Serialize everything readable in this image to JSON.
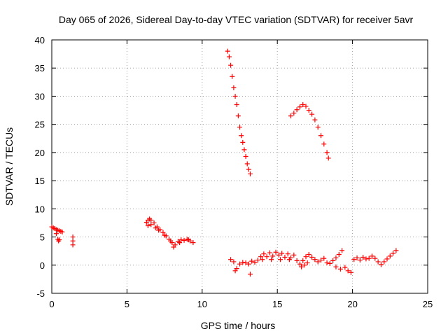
{
  "chart_data": {
    "type": "scatter",
    "title": "Day 065 of 2026, Sidereal Day-to-day VTEC variation (SDTVAR) for receiver 5avr",
    "xlabel": "GPS time / hours",
    "ylabel": "SDTVAR / TECUs",
    "xlim": [
      0,
      25
    ],
    "ylim": [
      -5,
      40
    ],
    "xticks": [
      "0",
      "5",
      "10",
      "15",
      "20",
      "25"
    ],
    "yticks": [
      "-5",
      "0",
      "5",
      "10",
      "15",
      "20",
      "25",
      "30",
      "35",
      "40"
    ],
    "grid": true,
    "marker": "+",
    "color": "#ff0000",
    "series": [
      {
        "name": "segment-1",
        "points": [
          [
            0.0,
            6.8
          ],
          [
            0.1,
            6.6
          ],
          [
            0.2,
            6.5
          ],
          [
            0.3,
            6.3
          ],
          [
            0.4,
            6.2
          ],
          [
            0.5,
            6.1
          ],
          [
            0.6,
            6.0
          ],
          [
            0.7,
            5.9
          ],
          [
            0.3,
            5.6
          ],
          [
            0.4,
            4.6
          ],
          [
            0.45,
            4.3
          ],
          [
            0.5,
            4.5
          ]
        ]
      },
      {
        "name": "segment-2",
        "points": [
          [
            1.4,
            5.0
          ],
          [
            1.4,
            4.3
          ],
          [
            1.4,
            3.6
          ]
        ]
      },
      {
        "name": "segment-3",
        "points": [
          [
            6.3,
            7.6
          ],
          [
            6.4,
            8.0
          ],
          [
            6.5,
            8.2
          ],
          [
            6.6,
            8.0
          ],
          [
            6.8,
            7.5
          ],
          [
            7.0,
            6.8
          ],
          [
            7.2,
            6.3
          ],
          [
            7.4,
            5.8
          ],
          [
            7.6,
            5.2
          ],
          [
            7.8,
            4.6
          ],
          [
            8.0,
            4.0
          ],
          [
            8.1,
            3.2
          ],
          [
            8.2,
            3.6
          ],
          [
            8.4,
            4.2
          ],
          [
            8.6,
            4.5
          ],
          [
            8.8,
            4.4
          ],
          [
            9.0,
            4.6
          ],
          [
            9.2,
            4.3
          ],
          [
            9.4,
            4.0
          ],
          [
            6.4,
            7.0
          ],
          [
            6.6,
            7.2
          ],
          [
            6.9,
            6.6
          ],
          [
            7.1,
            6.2
          ],
          [
            7.5,
            5.3
          ],
          [
            7.9,
            4.3
          ],
          [
            8.5,
            4.0
          ],
          [
            9.1,
            4.5
          ]
        ]
      },
      {
        "name": "segment-4",
        "points": [
          [
            11.7,
            38.0
          ],
          [
            11.8,
            37.0
          ],
          [
            11.9,
            35.5
          ],
          [
            12.0,
            33.5
          ],
          [
            12.1,
            31.5
          ],
          [
            12.2,
            30.0
          ],
          [
            12.3,
            28.5
          ],
          [
            12.4,
            26.5
          ],
          [
            12.5,
            24.5
          ],
          [
            12.6,
            23.0
          ],
          [
            12.7,
            21.8
          ],
          [
            12.8,
            20.5
          ],
          [
            12.9,
            19.3
          ],
          [
            13.0,
            18.0
          ],
          [
            13.1,
            17.0
          ],
          [
            13.2,
            16.2
          ]
        ]
      },
      {
        "name": "segment-5",
        "points": [
          [
            15.9,
            26.5
          ],
          [
            16.1,
            27.0
          ],
          [
            16.3,
            27.6
          ],
          [
            16.5,
            28.1
          ],
          [
            16.7,
            28.5
          ],
          [
            16.9,
            28.2
          ],
          [
            17.1,
            27.5
          ],
          [
            17.3,
            26.8
          ],
          [
            17.5,
            25.8
          ],
          [
            17.7,
            24.5
          ],
          [
            17.9,
            23.0
          ],
          [
            18.1,
            21.5
          ],
          [
            18.3,
            20.0
          ],
          [
            18.4,
            19.0
          ]
        ]
      },
      {
        "name": "segment-6",
        "points": [
          [
            11.9,
            1.0
          ],
          [
            12.1,
            0.6
          ],
          [
            12.3,
            -0.6
          ],
          [
            12.5,
            0.2
          ],
          [
            12.7,
            0.5
          ],
          [
            12.9,
            0.4
          ],
          [
            13.1,
            0.2
          ],
          [
            13.3,
            0.7
          ],
          [
            13.5,
            0.5
          ],
          [
            13.7,
            0.9
          ],
          [
            13.2,
            -1.6
          ],
          [
            12.2,
            -1.0
          ],
          [
            13.9,
            1.5
          ],
          [
            14.1,
            2.0
          ],
          [
            14.3,
            1.5
          ],
          [
            14.5,
            2.2
          ],
          [
            14.7,
            1.6
          ],
          [
            14.9,
            2.3
          ],
          [
            15.1,
            1.8
          ],
          [
            15.3,
            2.1
          ],
          [
            15.5,
            1.4
          ],
          [
            15.7,
            2.0
          ],
          [
            15.9,
            1.3
          ],
          [
            16.1,
            1.8
          ],
          [
            16.3,
            0.8
          ],
          [
            16.5,
            0.2
          ],
          [
            16.7,
            0.8
          ],
          [
            16.9,
            1.5
          ],
          [
            17.1,
            1.9
          ],
          [
            17.3,
            1.4
          ],
          [
            17.5,
            1.0
          ],
          [
            17.7,
            0.6
          ],
          [
            17.9,
            0.9
          ],
          [
            18.1,
            1.2
          ],
          [
            18.3,
            0.4
          ],
          [
            18.5,
            0.3
          ],
          [
            18.7,
            0.8
          ],
          [
            18.9,
            1.3
          ],
          [
            19.1,
            1.9
          ],
          [
            19.3,
            2.6
          ],
          [
            19.5,
            -0.4
          ],
          [
            19.7,
            -1.0
          ],
          [
            19.9,
            -1.3
          ],
          [
            18.9,
            -0.3
          ],
          [
            19.2,
            -0.7
          ],
          [
            20.1,
            1.0
          ],
          [
            20.3,
            1.3
          ],
          [
            20.5,
            0.9
          ],
          [
            20.7,
            1.4
          ],
          [
            20.9,
            1.1
          ],
          [
            21.1,
            1.2
          ],
          [
            21.3,
            1.6
          ],
          [
            21.5,
            1.2
          ],
          [
            21.7,
            0.6
          ],
          [
            21.9,
            0.1
          ],
          [
            22.1,
            0.6
          ],
          [
            22.3,
            1.1
          ],
          [
            22.5,
            1.6
          ],
          [
            22.7,
            2.1
          ],
          [
            22.9,
            2.6
          ],
          [
            16.6,
            -0.3
          ],
          [
            16.8,
            0.0
          ],
          [
            17.0,
            0.4
          ],
          [
            14.0,
            1.0
          ],
          [
            14.6,
            1.0
          ],
          [
            15.2,
            1.0
          ],
          [
            15.8,
            1.0
          ]
        ]
      }
    ]
  }
}
